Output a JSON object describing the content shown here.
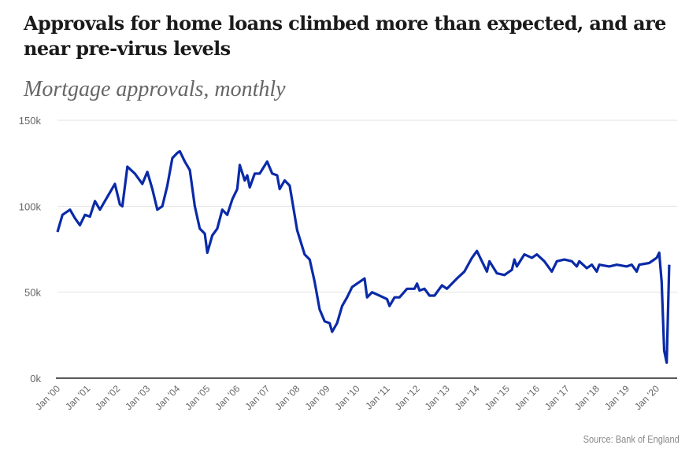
{
  "title": "Approvals for home loans climbed more than expected, and are near pre-virus levels",
  "subtitle": "Mortgage approvals, monthly",
  "source": "Source: Bank of England",
  "chart_data": {
    "type": "line",
    "title": "Approvals for home loans climbed more than expected, and are near pre-virus levels",
    "subtitle": "Mortgage approvals, monthly",
    "xlabel": "",
    "ylabel": "",
    "ylim": [
      0,
      150000
    ],
    "xlim": [
      "2000-01",
      "2020-06"
    ],
    "grid": true,
    "line_color": "#0a2aa8",
    "y_ticks": [
      {
        "value": 0,
        "label": "0k"
      },
      {
        "value": 50000,
        "label": "50k"
      },
      {
        "value": 100000,
        "label": "100k"
      },
      {
        "value": 150000,
        "label": "150k"
      }
    ],
    "x_ticks": [
      {
        "value": "2000-01",
        "label": "Jan '00"
      },
      {
        "value": "2001-01",
        "label": "Jan '01"
      },
      {
        "value": "2002-01",
        "label": "Jan '02"
      },
      {
        "value": "2003-01",
        "label": "Jan '03"
      },
      {
        "value": "2004-01",
        "label": "Jan '04"
      },
      {
        "value": "2005-01",
        "label": "Jan '05"
      },
      {
        "value": "2006-01",
        "label": "Jan '06"
      },
      {
        "value": "2007-01",
        "label": "Jan '07"
      },
      {
        "value": "2008-01",
        "label": "Jan '08"
      },
      {
        "value": "2009-01",
        "label": "Jan '09"
      },
      {
        "value": "2010-01",
        "label": "Jan '10"
      },
      {
        "value": "2011-01",
        "label": "Jan '11"
      },
      {
        "value": "2012-01",
        "label": "Jan '12"
      },
      {
        "value": "2013-01",
        "label": "Jan '13"
      },
      {
        "value": "2014-01",
        "label": "Jan '14"
      },
      {
        "value": "2015-01",
        "label": "Jan '15"
      },
      {
        "value": "2016-01",
        "label": "Jan '16"
      },
      {
        "value": "2017-01",
        "label": "Jan '17"
      },
      {
        "value": "2018-01",
        "label": "Jan '18"
      },
      {
        "value": "2019-01",
        "label": "Jan '19"
      },
      {
        "value": "2020-01",
        "label": "Jan '20"
      }
    ],
    "series": [
      {
        "x": [
          "2000-01",
          "2000-03",
          "2000-06",
          "2000-08",
          "2000-10",
          "2000-12",
          "2001-02",
          "2001-04",
          "2001-06",
          "2001-08",
          "2001-10",
          "2001-12",
          "2002-02",
          "2002-03",
          "2002-05",
          "2002-08",
          "2002-11",
          "2003-01",
          "2003-03",
          "2003-05",
          "2003-07",
          "2003-09",
          "2003-11",
          "2004-01",
          "2004-02",
          "2004-04",
          "2004-06",
          "2004-08",
          "2004-10",
          "2004-12",
          "2005-01",
          "2005-03",
          "2005-05",
          "2005-07",
          "2005-09",
          "2005-11",
          "2006-01",
          "2006-02",
          "2006-04",
          "2006-05",
          "2006-06",
          "2006-08",
          "2006-10",
          "2007-01",
          "2007-03",
          "2007-05",
          "2007-06",
          "2007-08",
          "2007-10",
          "2008-01",
          "2008-04",
          "2008-06",
          "2008-08",
          "2008-10",
          "2008-12",
          "2009-02",
          "2009-03",
          "2009-05",
          "2009-07",
          "2009-09",
          "2009-11",
          "2010-01",
          "2010-04",
          "2010-05",
          "2010-07",
          "2010-10",
          "2011-01",
          "2011-02",
          "2011-04",
          "2011-06",
          "2011-09",
          "2011-12",
          "2012-01",
          "2012-02",
          "2012-04",
          "2012-06",
          "2012-08",
          "2012-11",
          "2013-01",
          "2013-05",
          "2013-08",
          "2013-11",
          "2014-01",
          "2014-03",
          "2014-05",
          "2014-06",
          "2014-09",
          "2014-12",
          "2015-03",
          "2015-04",
          "2015-05",
          "2015-08",
          "2015-11",
          "2016-01",
          "2016-04",
          "2016-07",
          "2016-09",
          "2016-12",
          "2017-03",
          "2017-05",
          "2017-06",
          "2017-09",
          "2017-11",
          "2018-01",
          "2018-02",
          "2018-06",
          "2018-09",
          "2019-01",
          "2019-03",
          "2019-05",
          "2019-06",
          "2019-10",
          "2020-01",
          "2020-02",
          "2020-03",
          "2020-04",
          "2020-05",
          "2020-06"
        ],
        "values": [
          85000,
          95000,
          98000,
          93000,
          89000,
          95000,
          94000,
          103000,
          98000,
          103000,
          108000,
          113000,
          101000,
          100000,
          123000,
          119000,
          113000,
          120000,
          110000,
          98000,
          100000,
          112000,
          128000,
          131000,
          132000,
          126000,
          121000,
          100000,
          87000,
          84000,
          73000,
          83000,
          87000,
          98000,
          95000,
          104000,
          110000,
          124000,
          115000,
          118000,
          111000,
          119000,
          119000,
          126000,
          119000,
          118000,
          110000,
          115000,
          112000,
          86000,
          72000,
          69000,
          56000,
          40000,
          33000,
          32000,
          27000,
          32000,
          42000,
          47000,
          53000,
          55000,
          58000,
          47000,
          50000,
          48000,
          46000,
          42000,
          47000,
          47000,
          52000,
          52000,
          55000,
          51000,
          52000,
          48000,
          48000,
          54000,
          52000,
          58000,
          62000,
          70000,
          74000,
          68000,
          62000,
          68000,
          61000,
          60000,
          63000,
          69000,
          65000,
          72000,
          70000,
          72000,
          68000,
          62000,
          68000,
          69000,
          68000,
          65000,
          68000,
          64000,
          66000,
          62000,
          66000,
          65000,
          66000,
          65000,
          66000,
          62000,
          66000,
          67000,
          70000,
          73000,
          56000,
          16000,
          9000,
          66000
        ]
      }
    ]
  }
}
